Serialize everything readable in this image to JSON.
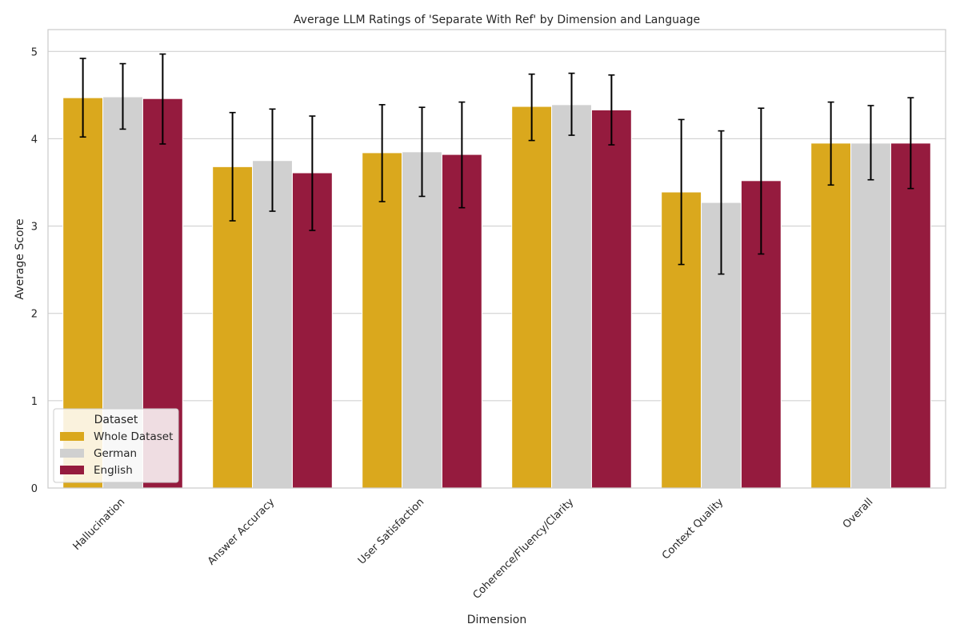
{
  "chart_data": {
    "type": "bar",
    "title": "Average LLM Ratings of 'Separate With Ref' by Dimension and Language",
    "xlabel": "Dimension",
    "ylabel": "Average Score",
    "ylim": [
      0,
      5.25
    ],
    "yticks": [
      0,
      1,
      2,
      3,
      4,
      5
    ],
    "grid": "horizontal",
    "legend": {
      "title": "Dataset",
      "placement": "lower-left"
    },
    "categories": [
      "Hallucination",
      "Answer Accuracy",
      "User Satisfaction",
      "Coherence/Fluency/Clarity",
      "Context Quality",
      "Overall"
    ],
    "series": [
      {
        "name": "Whole Dataset",
        "color": "#DAA81D",
        "values": [
          4.47,
          3.68,
          3.84,
          4.37,
          3.39,
          3.95
        ],
        "err_low": [
          4.02,
          3.06,
          3.28,
          3.98,
          2.56,
          3.47
        ],
        "err_high": [
          4.92,
          4.3,
          4.39,
          4.74,
          4.22,
          4.42
        ]
      },
      {
        "name": "German",
        "color": "#D0D0D0",
        "values": [
          4.48,
          3.75,
          3.85,
          4.39,
          3.27,
          3.95
        ],
        "err_low": [
          4.11,
          3.17,
          3.34,
          4.04,
          2.45,
          3.53
        ],
        "err_high": [
          4.86,
          4.34,
          4.36,
          4.75,
          4.09,
          4.38
        ]
      },
      {
        "name": "English",
        "color": "#951B3E",
        "values": [
          4.46,
          3.61,
          3.82,
          4.33,
          3.52,
          3.95
        ],
        "err_low": [
          3.94,
          2.95,
          3.21,
          3.93,
          2.68,
          3.43
        ],
        "err_high": [
          4.97,
          4.26,
          4.42,
          4.73,
          4.35,
          4.47
        ]
      }
    ]
  }
}
